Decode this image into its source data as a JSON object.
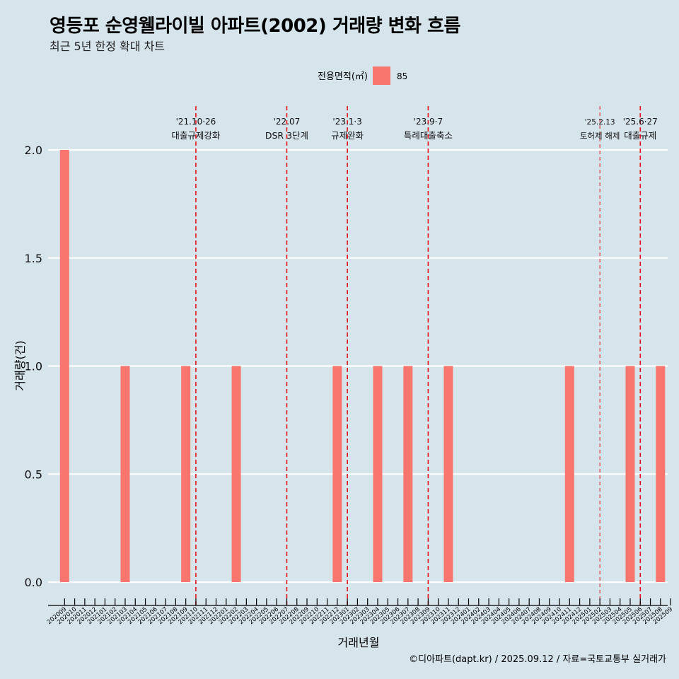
{
  "header": {
    "title": "영등포 순영웰라이빌 아파트(2002) 거래량 변화 흐름",
    "subtitle": "최근 5년 한정 확대 차트"
  },
  "caption": "©디아파트(dapt.kr) / 2025.09.12 / 자료=국토교통부 실거래가",
  "chart_data": {
    "type": "bar",
    "title": "영등포 순영웰라이빌 아파트(2002) 거래량 변화 흐름",
    "xlabel": "거래년월",
    "ylabel": "거래량(건)",
    "ylim": [
      0,
      2
    ],
    "yticks": [
      0.0,
      0.5,
      1.0,
      1.5,
      2.0
    ],
    "ytick_labels": [
      "0.0",
      "0.5",
      "1.0",
      "1.5",
      "2.0"
    ],
    "legend": {
      "title": "전용면적(㎡)",
      "position": "top",
      "entries": [
        {
          "label": "85",
          "color": "#f8766d"
        }
      ]
    },
    "categories": [
      "202009",
      "202010",
      "202011",
      "202012",
      "202101",
      "202102",
      "202103",
      "202104",
      "202105",
      "202106",
      "202107",
      "202108",
      "202109",
      "202110",
      "202111",
      "202112",
      "202201",
      "202202",
      "202203",
      "202204",
      "202205",
      "202206",
      "202207",
      "202208",
      "202209",
      "202210",
      "202211",
      "202212",
      "202301",
      "202302",
      "202303",
      "202304",
      "202305",
      "202306",
      "202307",
      "202308",
      "202309",
      "202310",
      "202311",
      "202312",
      "202401",
      "202402",
      "202403",
      "202404",
      "202405",
      "202406",
      "202407",
      "202408",
      "202409",
      "202410",
      "202411",
      "202412",
      "202501",
      "202502",
      "202503",
      "202504",
      "202505",
      "202506",
      "202507",
      "202508",
      "202509"
    ],
    "series": [
      {
        "name": "85",
        "color": "#f8766d",
        "values": [
          2,
          0,
          0,
          0,
          0,
          0,
          1,
          0,
          0,
          0,
          0,
          0,
          1,
          0,
          0,
          0,
          0,
          1,
          0,
          0,
          0,
          0,
          0,
          0,
          0,
          0,
          0,
          1,
          0,
          0,
          0,
          1,
          0,
          0,
          1,
          0,
          0,
          0,
          1,
          0,
          0,
          0,
          0,
          0,
          0,
          0,
          0,
          0,
          0,
          0,
          1,
          0,
          0,
          0,
          0,
          0,
          1,
          0,
          0,
          1,
          0
        ]
      }
    ],
    "annotations": [
      {
        "x": "202110",
        "date": "'21.10·26",
        "label": "대출규제강화",
        "style": "bold"
      },
      {
        "x": "202207",
        "date": "'22.07",
        "label": "DSR 3단계",
        "style": "bold"
      },
      {
        "x": "202301",
        "date": "'23.1·3",
        "label": "규제완화",
        "style": "bold"
      },
      {
        "x": "202309",
        "date": "'23.9·7",
        "label": "특례대출축소",
        "style": "bold"
      },
      {
        "x": "202502",
        "date": "'25.2.13",
        "label": "토허제 해제",
        "style": "thin"
      },
      {
        "x": "202506",
        "date": "'25.6·27",
        "label": "대출규제",
        "style": "bold"
      }
    ]
  }
}
